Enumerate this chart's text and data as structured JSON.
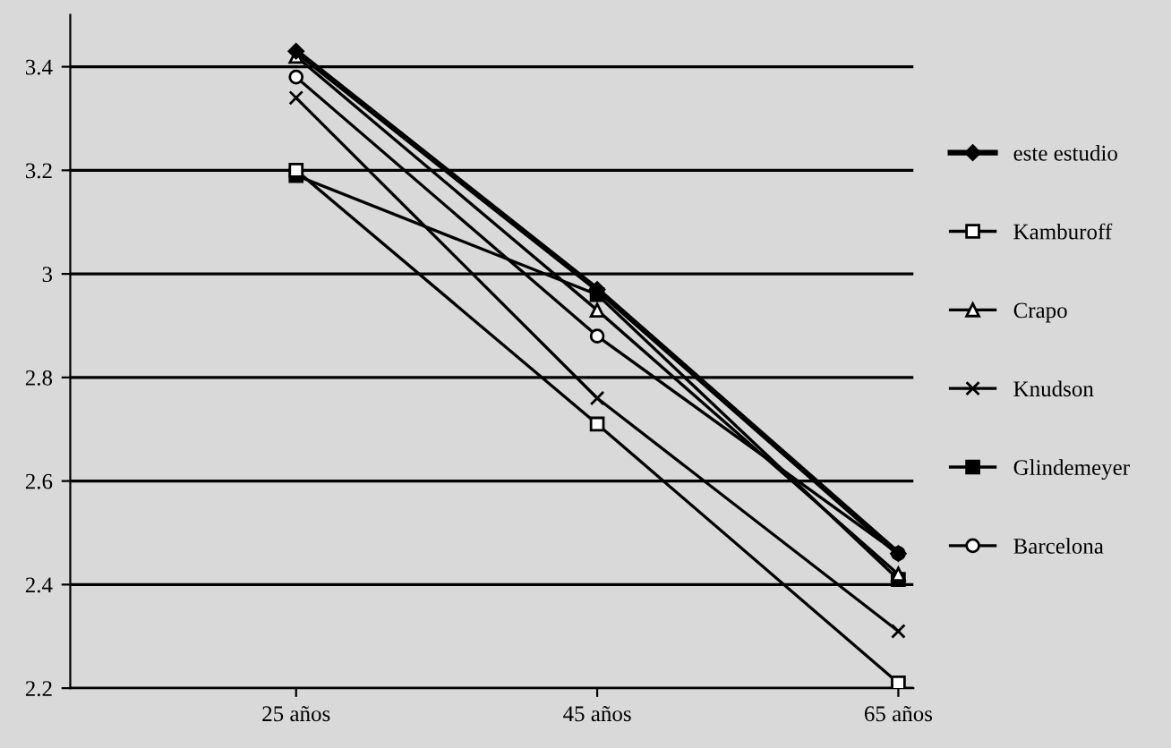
{
  "chart_data": {
    "type": "line",
    "categories": [
      "25 años",
      "45 años",
      "65 años"
    ],
    "series": [
      {
        "name": "este estudio",
        "color": "#000000",
        "marker": "diamond",
        "values": [
          3.43,
          2.97,
          2.46
        ]
      },
      {
        "name": "Kamburoff",
        "color": "#000000",
        "marker": "square",
        "values": [
          3.2,
          2.71,
          2.21
        ]
      },
      {
        "name": "Crapo",
        "color": "#000000",
        "marker": "triangle",
        "values": [
          3.42,
          2.93,
          2.42
        ]
      },
      {
        "name": "Knudson",
        "color": "#000000",
        "marker": "cross",
        "values": [
          3.34,
          2.76,
          2.31
        ]
      },
      {
        "name": "Glindemeyer",
        "color": "#000000",
        "marker": "square",
        "values": [
          3.19,
          2.96,
          2.41
        ]
      },
      {
        "name": "Barcelona",
        "color": "#000000",
        "marker": "circle",
        "values": [
          3.38,
          2.88,
          2.46
        ]
      }
    ],
    "ylim": [
      2.2,
      3.5
    ],
    "yticks": [
      2.2,
      2.4,
      2.6,
      2.8,
      {
        "value": 3.0,
        "label": "3"
      },
      3.2,
      3.4
    ],
    "grid": "y",
    "legend": "right",
    "line_style": "solid"
  }
}
